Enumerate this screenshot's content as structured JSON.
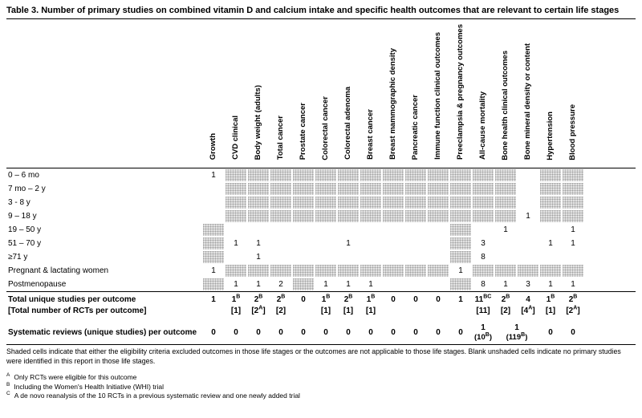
{
  "title": "Table 3. Number of primary studies on combined vitamin D and calcium intake and specific health outcomes that are relevant to certain life stages",
  "columns": [
    "Growth",
    "CVD clinical",
    "Body weight (adults)",
    "Total cancer",
    "Prostate cancer",
    "Colorectal cancer",
    "Colorectal adenoma",
    "Breast cancer",
    "Breast mammographic density",
    "Pancreatic cancer",
    "Immune function clinical outcomes",
    "Preeclampsia & pregnancy outcomes",
    "All-cause mortality",
    "Bone health clinical outcomes",
    "Bone mineral density or content",
    "Hypertension",
    "Blood pressure"
  ],
  "rows": [
    {
      "label": "0 – 6 mo",
      "cells": [
        "1",
        "#",
        "#",
        "#",
        "#",
        "#",
        "#",
        "#",
        "#",
        "#",
        "#",
        "#",
        "#",
        "#",
        "",
        "#",
        "#"
      ]
    },
    {
      "label": "7 mo – 2 y",
      "cells": [
        "",
        "#",
        "#",
        "#",
        "#",
        "#",
        "#",
        "#",
        "#",
        "#",
        "#",
        "#",
        "#",
        "#",
        "",
        "#",
        "#"
      ]
    },
    {
      "label": "3 - 8 y",
      "cells": [
        "",
        "#",
        "#",
        "#",
        "#",
        "#",
        "#",
        "#",
        "#",
        "#",
        "#",
        "#",
        "#",
        "#",
        "",
        "#",
        "#"
      ]
    },
    {
      "label": "9 – 18 y",
      "cells": [
        "",
        "#",
        "#",
        "#",
        "#",
        "#",
        "#",
        "#",
        "#",
        "#",
        "#",
        "#",
        "#",
        "#",
        "1",
        "#",
        "#"
      ]
    },
    {
      "label": "19 – 50 y",
      "cells": [
        "#",
        "",
        "",
        "",
        "",
        "",
        "",
        "",
        "",
        "",
        "",
        "#",
        "",
        "1",
        "",
        "",
        "1"
      ]
    },
    {
      "label": "51 – 70 y",
      "cells": [
        "#",
        "1",
        "1",
        "",
        "",
        "",
        "1",
        "",
        "",
        "",
        "",
        "#",
        "3",
        "",
        "",
        "1",
        "1"
      ]
    },
    {
      "label": "≥71 y",
      "cells": [
        "#",
        "",
        "1",
        "",
        "",
        "",
        "",
        "",
        "",
        "",
        "",
        "#",
        "8",
        "",
        "",
        "",
        ""
      ]
    },
    {
      "label": "Pregnant & lactating women",
      "cells": [
        "1",
        "#",
        "#",
        "#",
        "#",
        "#",
        "#",
        "#",
        "#",
        "#",
        "#",
        "1",
        "#",
        "#",
        "#",
        "#",
        "#"
      ]
    },
    {
      "label": "Postmenopause",
      "cells": [
        "#",
        "1",
        "1",
        "2",
        "#",
        "1",
        "1",
        "1",
        "",
        "",
        "",
        "#",
        "8",
        "1",
        "3",
        "1",
        "1"
      ]
    }
  ],
  "summary": {
    "totals": {
      "label": "Total unique studies per outcome",
      "cells": [
        "1",
        "1^{B}",
        "2^{B}",
        "2^{B}",
        "0",
        "1^{B}",
        "2^{B}",
        "1^{B}",
        "0",
        "0",
        "0",
        "1",
        "11^{BC}",
        "2^{B}",
        "4",
        "1^{B}",
        "2^{B}"
      ]
    },
    "rcts": {
      "label": "[Total number of RCTs per outcome]",
      "cells": [
        "",
        "[1]",
        "[2^{A}]",
        "[2]",
        "",
        "[1]",
        "[1]",
        "[1]",
        "",
        "",
        "",
        "",
        "[11]",
        "[2]",
        "[4^{A}]",
        "[1]",
        "[2^{A}]"
      ]
    },
    "sysrev": {
      "label": "Systematic reviews (unique studies) per outcome",
      "cells": [
        {
          "v": "0"
        },
        {
          "v": "0"
        },
        {
          "v": "0"
        },
        {
          "v": "0"
        },
        {
          "v": "0"
        },
        {
          "v": "0"
        },
        {
          "v": "0"
        },
        {
          "v": "0"
        },
        {
          "v": "0"
        },
        {
          "v": "0"
        },
        {
          "v": "0"
        },
        {
          "v": "0"
        },
        {
          "v": "1",
          "sub": "(10^{B})"
        },
        {
          "v": "1",
          "sub": "(119^{B})",
          "span": 2
        },
        {
          "v": "0"
        },
        {
          "v": "0"
        }
      ]
    }
  },
  "note": "Shaded cells indicate that either the eligibility criteria excluded outcomes in those life stages or the outcomes are not applicable to those life stages. Blank unshaded cells indicate no primary studies were identified in this report in those life stages.",
  "footnotes": [
    {
      "mark": "A",
      "text": "Only RCTs were eligible for this outcome"
    },
    {
      "mark": "B",
      "text": "Including the Women's Health Initiative (WHI) trial"
    },
    {
      "mark": "C",
      "text": "A de novo reanalysis of the 10 RCTs in a previous systematic review and one newly added trial"
    }
  ]
}
